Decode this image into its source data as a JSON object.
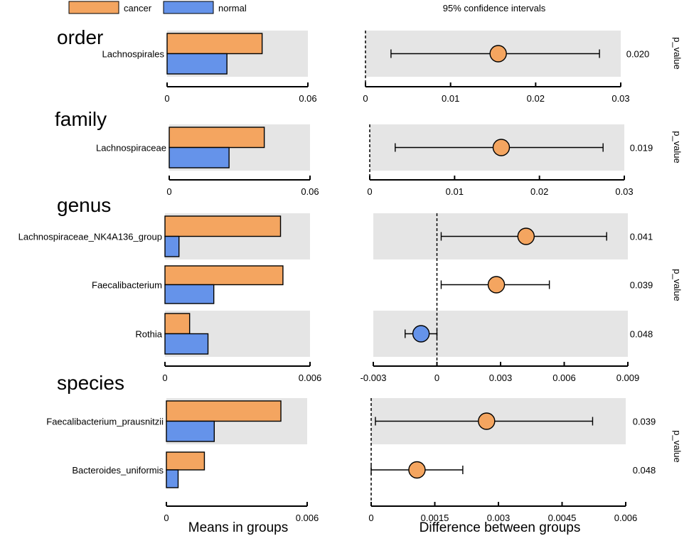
{
  "legend": {
    "items": [
      {
        "label": "cancer",
        "color": "#f4a560"
      },
      {
        "label": "normal",
        "color": "#6593ea"
      }
    ],
    "ci_title": "95% confidence intervals"
  },
  "axis_titles": {
    "left": "Means in groups",
    "right": "Difference between groups",
    "pvalue": "p_value"
  },
  "colors": {
    "cancer": "#f4a560",
    "normal": "#6593ea",
    "panel_bg": "#e5e5e5",
    "stroke": "#000000"
  },
  "chart_data": [
    {
      "type": "bar",
      "panel": "order",
      "title": "order",
      "categories": [
        "Lachnospirales"
      ],
      "series": [
        {
          "name": "cancer",
          "values": [
            0.0405
          ]
        },
        {
          "name": "normal",
          "values": [
            0.0255
          ]
        }
      ],
      "xlim": [
        0,
        0.06
      ],
      "ticks": [
        0,
        0.06
      ],
      "tick_labels": [
        "0",
        "0.06"
      ],
      "ci": {
        "type": "errorbar",
        "xlim": [
          0,
          0.03
        ],
        "ticks": [
          0,
          0.01,
          0.02,
          0.03
        ],
        "tick_labels": [
          "0",
          "0.01",
          "0.02",
          "0.03"
        ],
        "rows": [
          {
            "label": "Lachnospirales",
            "estimate": 0.0156,
            "lower": 0.003,
            "upper": 0.0275,
            "p_value": "0.020",
            "group": "cancer"
          }
        ]
      }
    },
    {
      "type": "bar",
      "panel": "family",
      "title": "family",
      "categories": [
        "Lachnospiraceae"
      ],
      "series": [
        {
          "name": "cancer",
          "values": [
            0.0405
          ]
        },
        {
          "name": "normal",
          "values": [
            0.0255
          ]
        }
      ],
      "xlim": [
        0,
        0.06
      ],
      "ticks": [
        0,
        0.06
      ],
      "tick_labels": [
        "0",
        "0.06"
      ],
      "ci": {
        "type": "errorbar",
        "xlim": [
          0,
          0.03
        ],
        "ticks": [
          0,
          0.01,
          0.02,
          0.03
        ],
        "tick_labels": [
          "0",
          "0.01",
          "0.02",
          "0.03"
        ],
        "rows": [
          {
            "label": "Lachnospiraceae",
            "estimate": 0.0155,
            "lower": 0.003,
            "upper": 0.0275,
            "p_value": "0.019",
            "group": "cancer"
          }
        ]
      }
    },
    {
      "type": "bar",
      "panel": "genus",
      "title": "genus",
      "categories": [
        "Lachnospiraceae_NK4A136_group",
        "Faecalibacterium",
        "Rothia"
      ],
      "series": [
        {
          "name": "cancer",
          "values": [
            0.00478,
            0.00488,
            0.00102
          ]
        },
        {
          "name": "normal",
          "values": [
            0.00058,
            0.00202,
            0.00178
          ]
        }
      ],
      "xlim": [
        0,
        0.006
      ],
      "ticks": [
        0,
        0.006
      ],
      "tick_labels": [
        "0",
        "0.006"
      ],
      "ci": {
        "type": "errorbar",
        "xlim": [
          -0.003,
          0.009
        ],
        "ticks": [
          -0.003,
          0,
          0.003,
          0.006,
          0.009
        ],
        "tick_labels": [
          "-0.003",
          "0",
          "0.003",
          "0.006",
          "0.009"
        ],
        "rows": [
          {
            "label": "Lachnospiraceae_NK4A136_group",
            "estimate": 0.0042,
            "lower": 0.0002,
            "upper": 0.008,
            "p_value": "0.041",
            "group": "cancer"
          },
          {
            "label": "Faecalibacterium",
            "estimate": 0.0028,
            "lower": 0.0002,
            "upper": 0.0053,
            "p_value": "0.039",
            "group": "cancer"
          },
          {
            "label": "Rothia",
            "estimate": -0.00075,
            "lower": -0.0015,
            "upper": 0.0,
            "p_value": "0.048",
            "group": "normal"
          }
        ]
      }
    },
    {
      "type": "bar",
      "panel": "species",
      "title": "species",
      "categories": [
        "Faecalibacterium_prausnitzii",
        "Bacteroides_uniformis"
      ],
      "series": [
        {
          "name": "cancer",
          "values": [
            0.00488,
            0.00162
          ]
        },
        {
          "name": "normal",
          "values": [
            0.00204,
            0.0005
          ]
        }
      ],
      "xlim": [
        0,
        0.006
      ],
      "ticks": [
        0,
        0.006
      ],
      "tick_labels": [
        "0",
        "0.006"
      ],
      "ci": {
        "type": "errorbar",
        "xlim": [
          0,
          0.006
        ],
        "ticks": [
          0,
          0.0015,
          0.003,
          0.0045,
          0.006
        ],
        "tick_labels": [
          "0",
          "0.0015",
          "0.003",
          "0.0045",
          "0.006"
        ],
        "rows": [
          {
            "label": "Faecalibacterium_prausnitzii",
            "estimate": 0.00272,
            "lower": 0.0001,
            "upper": 0.00522,
            "p_value": "0.039",
            "group": "cancer"
          },
          {
            "label": "Bacteroides_uniformis",
            "estimate": 0.00108,
            "lower": 0.0,
            "upper": 0.00216,
            "p_value": "0.048",
            "group": "cancer"
          }
        ]
      }
    }
  ]
}
